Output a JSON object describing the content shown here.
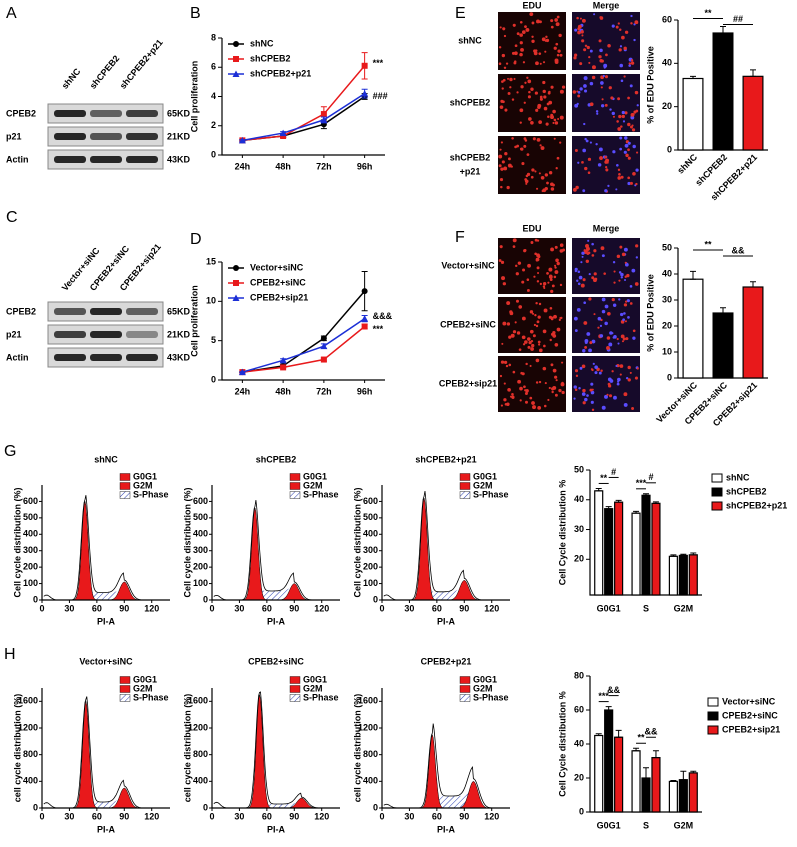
{
  "panel_labels": [
    "A",
    "B",
    "C",
    "D",
    "E",
    "F",
    "G",
    "H"
  ],
  "blots": [
    {
      "lanes": [
        "shNC",
        "shCPEB2",
        "shCPEB2+p21"
      ],
      "rows": [
        {
          "protein": "CPEB2",
          "size": "65KD"
        },
        {
          "protein": "p21",
          "size": "21KD"
        },
        {
          "protein": "Actin",
          "size": "43KD"
        }
      ]
    },
    {
      "lanes": [
        "Vector+siNC",
        "CPEB2+siNC",
        "CPEB2+sip21"
      ],
      "rows": [
        {
          "protein": "CPEB2",
          "size": "65KD"
        },
        {
          "protein": "p21",
          "size": "21KD"
        },
        {
          "protein": "Actin",
          "size": "43KD"
        }
      ]
    }
  ],
  "microscopy": [
    {
      "columns": [
        "EDU",
        "Merge"
      ],
      "rows": [
        [
          "shNC"
        ],
        [
          "shCPEB2"
        ],
        [
          "shCPEB2",
          "+p21"
        ]
      ]
    },
    {
      "columns": [
        "EDU",
        "Merge"
      ],
      "rows": [
        [
          "Vector+siNC"
        ],
        [
          "CPEB2+siNC"
        ],
        [
          "CPEB2+sip21"
        ]
      ]
    }
  ],
  "flow": [
    {
      "titles": [
        "shNC",
        "shCPEB2",
        "shCPEB2+p21"
      ],
      "xlabel": "PI-A",
      "ylabel": "Cell cycle distribution (%)",
      "xlim": [
        0,
        140
      ],
      "ylim": [
        0,
        700
      ],
      "xticks": [
        0,
        30,
        60,
        90,
        120
      ],
      "yticks": [
        0,
        100,
        200,
        300,
        400,
        500,
        600
      ],
      "legend": [
        "G0G1",
        "G2M",
        "S-Phase"
      ]
    },
    {
      "titles": [
        "Vector+siNC",
        "CPEB2+siNC",
        "CPEB2+p21"
      ],
      "xlabel": "PI-A",
      "ylabel": "cell cycle distribution (%)",
      "xlim": [
        0,
        140
      ],
      "ylim": [
        0,
        1800
      ],
      "xticks": [
        0,
        30,
        60,
        90,
        120
      ],
      "yticks": [
        0,
        400,
        800,
        1200,
        1600
      ],
      "legend": [
        "G0G1",
        "G2M",
        "S-Phase"
      ]
    }
  ],
  "chart_data": [
    {
      "type": "line",
      "ylabel": "Cell proliferation",
      "categories": [
        "24h",
        "48h",
        "72h",
        "96h"
      ],
      "ylim": [
        0,
        8
      ],
      "yticks": [
        0,
        2,
        4,
        6,
        8
      ],
      "series": [
        {
          "name": "shNC",
          "color": "#000000",
          "marker": "circle",
          "values": [
            1,
            1.3,
            2.1,
            4.0
          ],
          "errors": [
            0.05,
            0.1,
            0.3,
            0.2
          ]
        },
        {
          "name": "shCPEB2",
          "color": "#e8191b",
          "marker": "square",
          "values": [
            1,
            1.3,
            2.8,
            6.1
          ],
          "errors": [
            0.05,
            0.1,
            0.5,
            0.9
          ]
        },
        {
          "name": "shCPEB2+p21",
          "color": "#1c2fd6",
          "marker": "triangle",
          "values": [
            1,
            1.5,
            2.4,
            4.2
          ],
          "errors": [
            0.05,
            0.1,
            0.2,
            0.3
          ]
        }
      ],
      "annotations": [
        "***",
        "###"
      ]
    },
    {
      "type": "line",
      "ylabel": "Cell proliferation",
      "categories": [
        "24h",
        "48h",
        "72h",
        "96h"
      ],
      "ylim": [
        0,
        15
      ],
      "yticks": [
        0,
        5,
        10,
        15
      ],
      "series": [
        {
          "name": "Vector+siNC",
          "color": "#000000",
          "marker": "circle",
          "values": [
            1,
            1.8,
            5.3,
            11.3
          ],
          "errors": [
            0.05,
            0.2,
            0.3,
            2.5
          ]
        },
        {
          "name": "CPEB2+siNC",
          "color": "#e8191b",
          "marker": "square",
          "values": [
            1,
            1.6,
            2.6,
            6.8
          ],
          "errors": [
            0.05,
            0.1,
            0.2,
            0.3
          ]
        },
        {
          "name": "CPEB2+sip21",
          "color": "#1c2fd6",
          "marker": "triangle",
          "values": [
            1,
            2.5,
            4.3,
            7.8
          ],
          "errors": [
            0.05,
            0.2,
            0.3,
            0.4
          ]
        }
      ],
      "annotations": [
        "&&&",
        "***"
      ]
    },
    {
      "type": "bar",
      "ylabel": "% of EDU Positive",
      "categories": [
        "shNC",
        "shCPEB2",
        "shCPEB2+p21"
      ],
      "values": [
        33,
        54,
        34
      ],
      "errors": [
        1,
        3,
        3
      ],
      "colors": [
        "#ffffff",
        "#000000",
        "#e8191b"
      ],
      "ylim": [
        0,
        60
      ],
      "yticks": [
        0,
        20,
        40,
        60
      ],
      "annotations": [
        "**",
        "##"
      ]
    },
    {
      "type": "bar",
      "ylabel": "% of EDU Positive",
      "categories": [
        "Vector+siNC",
        "CPEB2+siNC",
        "CPEB2+sip21"
      ],
      "values": [
        38,
        25,
        35
      ],
      "errors": [
        3,
        2,
        2
      ],
      "colors": [
        "#ffffff",
        "#000000",
        "#e8191b"
      ],
      "ylim": [
        0,
        50
      ],
      "yticks": [
        0,
        10,
        20,
        30,
        40,
        50
      ],
      "annotations": [
        "**",
        "&&"
      ]
    },
    {
      "type": "grouped-bar",
      "ylabel": "Cell Cycle distribution %",
      "categories": [
        "G0G1",
        "S",
        "G2M"
      ],
      "ylim": [
        8,
        50
      ],
      "yticks": [
        20,
        30,
        40,
        50
      ],
      "series": [
        {
          "name": "shNC",
          "color": "#ffffff",
          "values": [
            43,
            35.5,
            21
          ],
          "errors": [
            0.8,
            0.6,
            0.5
          ]
        },
        {
          "name": "shCPEB2",
          "color": "#000000",
          "values": [
            37,
            41.5,
            21.3
          ],
          "errors": [
            0.7,
            0.5,
            0.4
          ]
        },
        {
          "name": "shCPEB2+p21",
          "color": "#e8191b",
          "values": [
            39.2,
            38.8,
            21.5
          ],
          "errors": [
            0.6,
            0.5,
            0.6
          ]
        }
      ],
      "annotations": [
        "**",
        "#",
        "***",
        "#"
      ]
    },
    {
      "type": "grouped-bar",
      "ylabel": "Cell Cycle distribution %",
      "categories": [
        "G0G1",
        "S",
        "G2M"
      ],
      "ylim": [
        0,
        80
      ],
      "yticks": [
        0,
        20,
        40,
        60,
        80
      ],
      "series": [
        {
          "name": "Vector+siNC",
          "color": "#ffffff",
          "values": [
            45,
            36,
            18
          ],
          "errors": [
            1,
            1.5,
            0.5
          ]
        },
        {
          "name": "CPEB2+siNC",
          "color": "#000000",
          "values": [
            60,
            20,
            19
          ],
          "errors": [
            2,
            6,
            5
          ]
        },
        {
          "name": "CPEB2+sip21",
          "color": "#e8191b",
          "values": [
            44,
            32,
            23
          ],
          "errors": [
            4,
            4,
            1
          ]
        }
      ],
      "annotations": [
        "***",
        "&&",
        "**",
        "&&"
      ]
    }
  ]
}
